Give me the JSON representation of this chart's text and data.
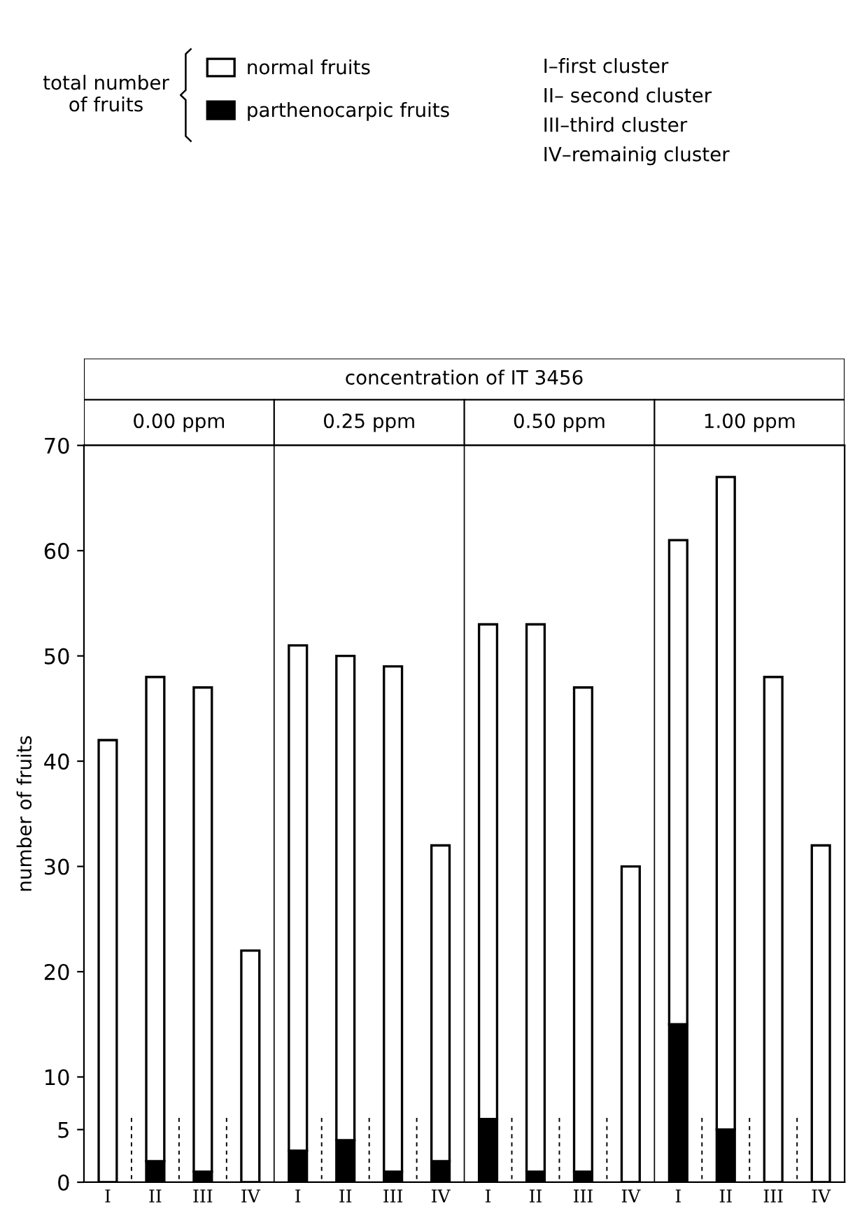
{
  "chart_data": {
    "type": "bar",
    "stacked": true,
    "title": "concentration of IT 3456",
    "ylabel": "number of fruits",
    "categories": [
      "I",
      "II",
      "III",
      "IV",
      "I",
      "II",
      "III",
      "IV",
      "I",
      "II",
      "III",
      "IV",
      "I",
      "II",
      "III",
      "IV"
    ],
    "series": [
      {
        "name": "parthenocarpic fruits",
        "color": "#000000",
        "values": [
          0,
          2,
          1,
          0,
          3,
          4,
          1,
          2,
          6,
          1,
          1,
          0,
          15,
          5,
          0,
          0
        ]
      },
      {
        "name": "normal fruits",
        "color": "#ffffff",
        "values": [
          42,
          46,
          46,
          22,
          48,
          46,
          48,
          30,
          47,
          52,
          46,
          30,
          46,
          62,
          48,
          32
        ]
      }
    ],
    "ylim": [
      0,
      70
    ],
    "yticks": [
      0,
      5,
      10,
      20,
      30,
      40,
      50,
      60,
      70
    ],
    "legend": "top left",
    "annotations": [
      "0.00 ppm",
      "0.25 ppm",
      "0.50 ppm",
      "1.00 ppm",
      "total number of fruits",
      "I–first cluster",
      "II– second cluster",
      "III–third cluster",
      "IV–remainig cluster"
    ]
  }
}
